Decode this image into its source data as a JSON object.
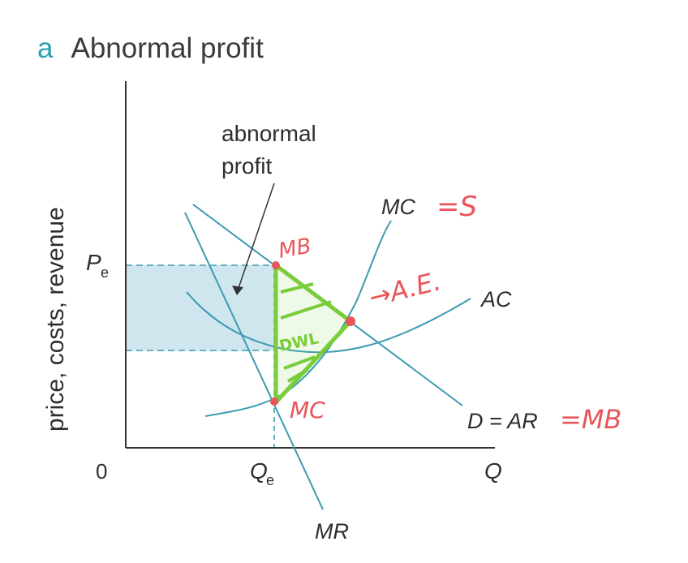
{
  "heading": {
    "tag": "a",
    "text": "Abnormal profit"
  },
  "axes": {
    "ylabel": "price, costs, revenue",
    "origin": "0",
    "x_end": "Q",
    "pe_main": "P",
    "pe_sub": "e",
    "qe_main": "Q",
    "qe_sub": "e"
  },
  "labels": {
    "abnormal_line1": "abnormal",
    "abnormal_line2": "profit",
    "mc": "MC",
    "ac": "AC",
    "demand": "D = AR",
    "mr": "MR"
  },
  "annotations": {
    "mc_eq": "=S",
    "ae": "→A.E.",
    "ar_eq": "=MB",
    "mb": "MB",
    "mc_point": "MC",
    "dwl": "DWL"
  },
  "colors": {
    "curve": "#3a9bb2",
    "shade": "#cfe6ee",
    "handwriting": "#e8555a",
    "dwl": "#79cc3a",
    "text": "#2e2e2e"
  }
}
